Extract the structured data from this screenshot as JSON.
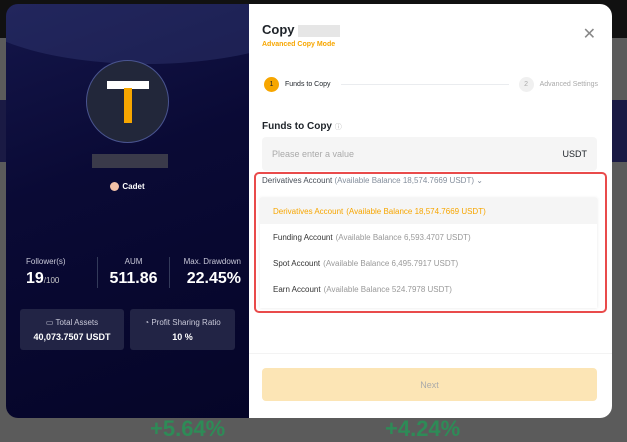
{
  "background": {
    "change_1": "+5.64%",
    "change_2": "+4.24%"
  },
  "profile": {
    "badge": "Cadet",
    "stats": [
      {
        "label": "Follower(s)",
        "value": "19",
        "suffix": "/100"
      },
      {
        "label": "AUM",
        "value": "511.86"
      },
      {
        "label": "Max. Drawdown",
        "value": "22.45%"
      }
    ],
    "total_assets": {
      "label": "Total Assets",
      "value": "40,073.7507 USDT"
    },
    "profit_sharing": {
      "label": "Profit Sharing Ratio",
      "value": "10 %"
    }
  },
  "dialog": {
    "title": "Copy",
    "mode": "Advanced Copy Mode",
    "steps": [
      {
        "num": "1",
        "label": "Funds to Copy"
      },
      {
        "num": "2",
        "label": "Advanced Settings"
      }
    ],
    "funds_label": "Funds to Copy",
    "placeholder": "Please enter a value",
    "unit": "USDT",
    "selected": {
      "name": "Derivatives Account",
      "balance": "(Available Balance 18,574.7669 USDT)"
    },
    "options": [
      {
        "name": "Derivatives Account",
        "balance": "(Available Balance 18,574.7669 USDT)"
      },
      {
        "name": "Funding Account",
        "balance": "(Available Balance 6,593.4707 USDT)"
      },
      {
        "name": "Spot Account",
        "balance": "(Available Balance 6,495.7917 USDT)"
      },
      {
        "name": "Earn Account",
        "balance": "(Available Balance 524.7978 USDT)"
      }
    ],
    "next": "Next"
  },
  "colors": {
    "accent": "#f7a600",
    "highlight": "#e94b4b"
  }
}
